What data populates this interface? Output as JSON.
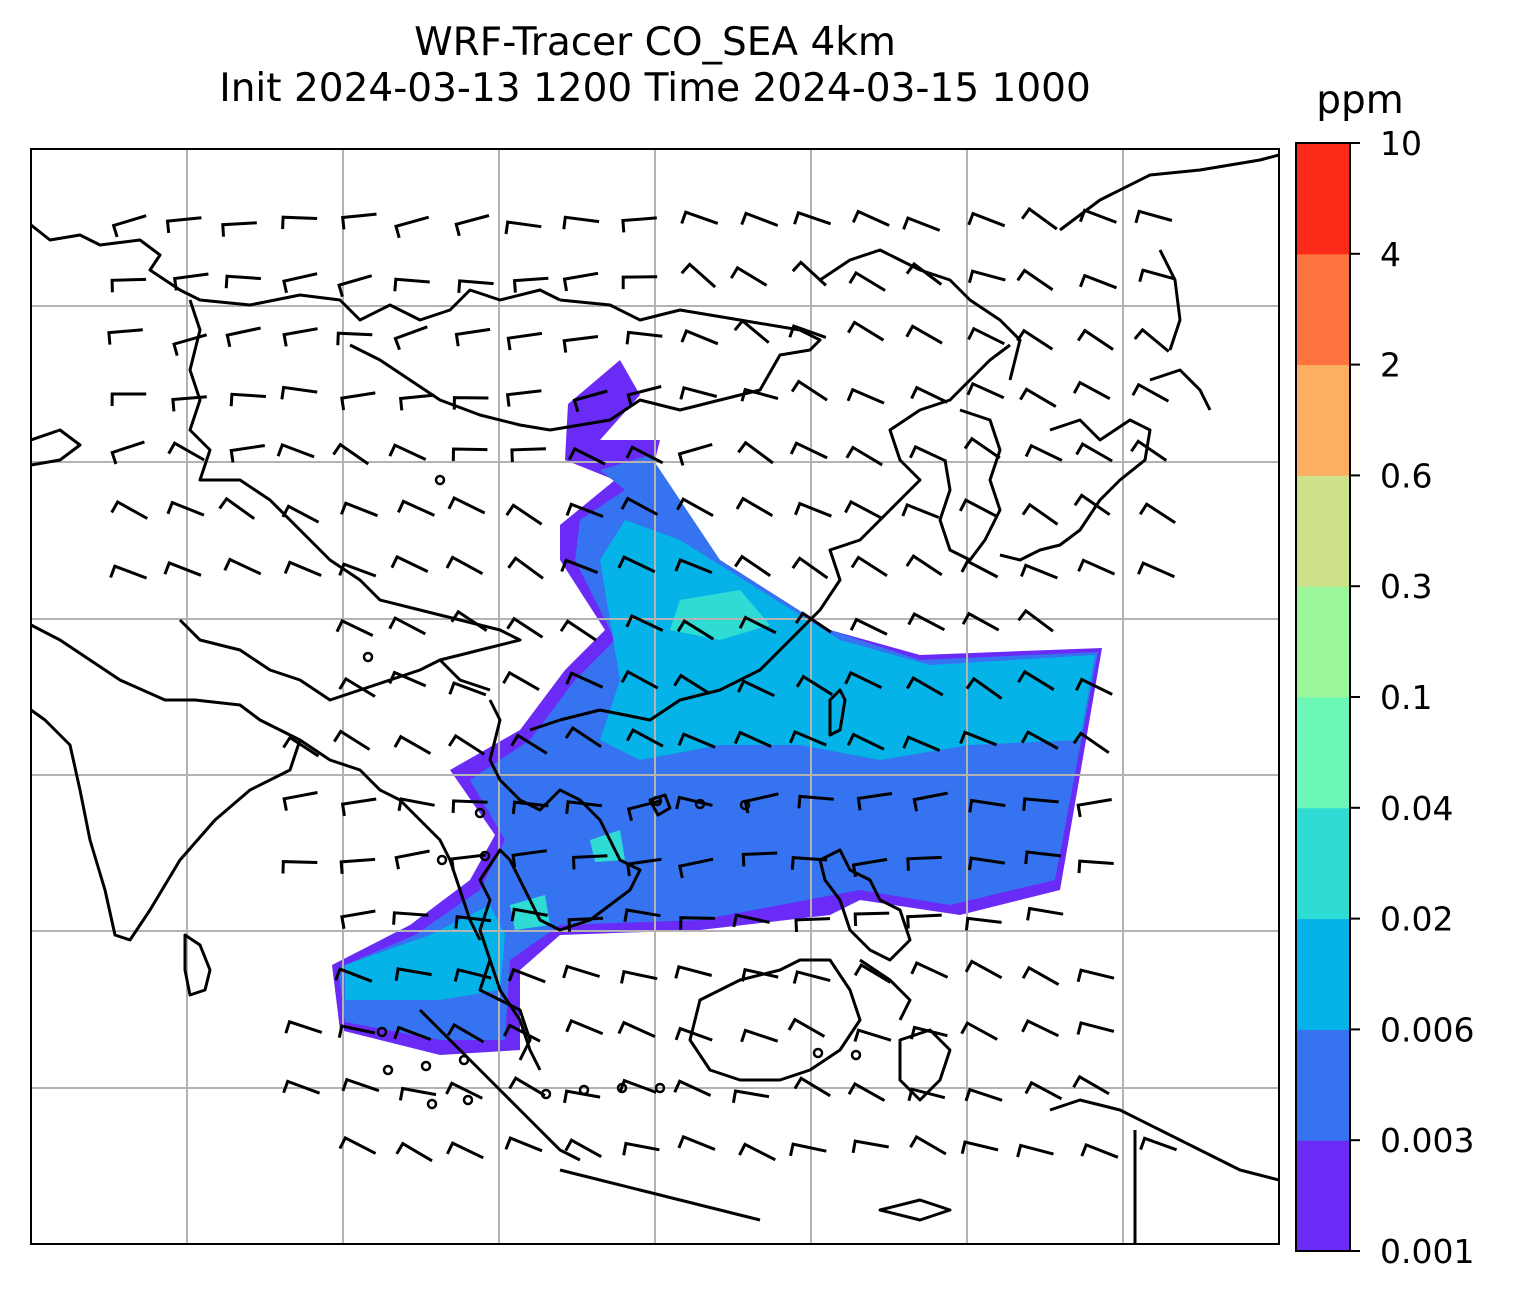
{
  "title": {
    "line1": "WRF-Tracer CO_SEA 4km",
    "line2": "Init 2024-03-13 1200 Time 2024-03-15 1000"
  },
  "colorbar": {
    "units": "ppm",
    "levels": [
      "0.001",
      "0.003",
      "0.006",
      "0.02",
      "0.04",
      "0.1",
      "0.3",
      "0.6",
      "2",
      "4",
      "10"
    ],
    "colors": [
      "#6a2bf6",
      "#3573f0",
      "#05b3e9",
      "#2fdcd4",
      "#6bf8b8",
      "#9af79a",
      "#cde18a",
      "#fdaf61",
      "#fd7440",
      "#fb2a18"
    ]
  },
  "map": {
    "plume_colors": {
      "edge": "#6a2bf6",
      "low": "#3573f0",
      "mid": "#05b3e9",
      "high": "#2fdcd4"
    },
    "coastline_color": "#000000",
    "gridline_color": "#b3b3b3"
  }
}
